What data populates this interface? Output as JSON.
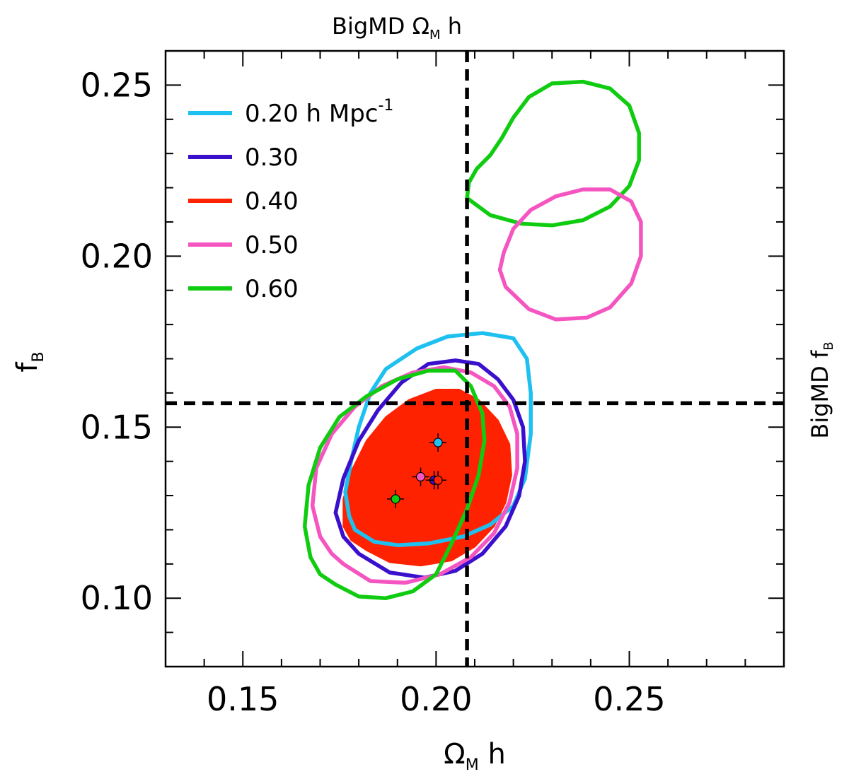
{
  "chart_data": {
    "type": "contour",
    "title": "",
    "xlabel": {
      "main": "Ω",
      "sub": "M",
      "suffix": " h"
    },
    "ylabel": {
      "main": "f",
      "sub": "B"
    },
    "top_label": {
      "prefix": "BigMD ",
      "main": "Ω",
      "sub": "M",
      "suffix": " h"
    },
    "right_label": {
      "prefix": "BigMD ",
      "main": "f",
      "sub": "B"
    },
    "xlim": [
      0.13,
      0.29
    ],
    "ylim": [
      0.08,
      0.26
    ],
    "xticks": [
      0.15,
      0.2,
      0.25
    ],
    "xtick_labels": [
      "0.15",
      "0.20",
      "0.25"
    ],
    "yticks": [
      0.1,
      0.15,
      0.2,
      0.25
    ],
    "ytick_labels": [
      "0.10",
      "0.15",
      "0.20",
      "0.25"
    ],
    "reference_lines": {
      "x": 0.208,
      "y": 0.157
    },
    "legend_position": "top-left",
    "series": [
      {
        "name": "0.20 h Mpc",
        "unit_sup": "-1",
        "color": "#1EC0F0",
        "filled": false,
        "best_fit": {
          "x": 0.2005,
          "y": 0.1455
        },
        "contour": [
          [
            0.179,
            0.12
          ],
          [
            0.184,
            0.1165
          ],
          [
            0.19,
            0.1155
          ],
          [
            0.198,
            0.116
          ],
          [
            0.207,
            0.118
          ],
          [
            0.214,
            0.1215
          ],
          [
            0.22,
            0.127
          ],
          [
            0.223,
            0.135
          ],
          [
            0.2245,
            0.148
          ],
          [
            0.2245,
            0.16
          ],
          [
            0.2235,
            0.17
          ],
          [
            0.22,
            0.176
          ],
          [
            0.212,
            0.1775
          ],
          [
            0.203,
            0.1765
          ],
          [
            0.195,
            0.173
          ],
          [
            0.187,
            0.167
          ],
          [
            0.183,
            0.16
          ],
          [
            0.18,
            0.15
          ],
          [
            0.178,
            0.14
          ],
          [
            0.1765,
            0.131
          ],
          [
            0.1775,
            0.124
          ],
          [
            0.179,
            0.12
          ]
        ]
      },
      {
        "name": "0.30",
        "color": "#3A10CC",
        "filled": false,
        "best_fit": {
          "x": 0.1995,
          "y": 0.1345
        },
        "contour": [
          [
            0.18,
            0.113
          ],
          [
            0.188,
            0.1075
          ],
          [
            0.197,
            0.106
          ],
          [
            0.205,
            0.108
          ],
          [
            0.212,
            0.113
          ],
          [
            0.218,
            0.121
          ],
          [
            0.2215,
            0.13
          ],
          [
            0.223,
            0.14
          ],
          [
            0.2225,
            0.15
          ],
          [
            0.22,
            0.158
          ],
          [
            0.216,
            0.164
          ],
          [
            0.211,
            0.1685
          ],
          [
            0.205,
            0.1695
          ],
          [
            0.198,
            0.1685
          ],
          [
            0.191,
            0.163
          ],
          [
            0.185,
            0.155
          ],
          [
            0.18,
            0.146
          ],
          [
            0.176,
            0.135
          ],
          [
            0.174,
            0.125
          ],
          [
            0.176,
            0.118
          ],
          [
            0.18,
            0.113
          ]
        ]
      },
      {
        "name": "0.40",
        "color": "#FF2200",
        "filled": true,
        "best_fit": {
          "x": 0.2005,
          "y": 0.1345
        },
        "contour": [
          [
            0.182,
            0.114
          ],
          [
            0.188,
            0.1105
          ],
          [
            0.196,
            0.1095
          ],
          [
            0.204,
            0.111
          ],
          [
            0.21,
            0.115
          ],
          [
            0.215,
            0.121
          ],
          [
            0.218,
            0.128
          ],
          [
            0.2195,
            0.136
          ],
          [
            0.219,
            0.145
          ],
          [
            0.216,
            0.152
          ],
          [
            0.211,
            0.158
          ],
          [
            0.206,
            0.161
          ],
          [
            0.2,
            0.161
          ],
          [
            0.193,
            0.158
          ],
          [
            0.187,
            0.153
          ],
          [
            0.182,
            0.146
          ],
          [
            0.178,
            0.137
          ],
          [
            0.176,
            0.129
          ],
          [
            0.176,
            0.121
          ],
          [
            0.178,
            0.117
          ],
          [
            0.182,
            0.114
          ]
        ]
      },
      {
        "name": "0.50",
        "color": "#F555C0",
        "filled": false,
        "best_fit": {
          "x": 0.196,
          "y": 0.1355
        },
        "contour": [
          [
            0.176,
            0.11
          ],
          [
            0.183,
            0.105
          ],
          [
            0.192,
            0.1045
          ],
          [
            0.201,
            0.107
          ],
          [
            0.209,
            0.112
          ],
          [
            0.215,
            0.119
          ],
          [
            0.219,
            0.128
          ],
          [
            0.221,
            0.138
          ],
          [
            0.221,
            0.148
          ],
          [
            0.219,
            0.156
          ],
          [
            0.215,
            0.162
          ],
          [
            0.209,
            0.166
          ],
          [
            0.202,
            0.1675
          ],
          [
            0.194,
            0.166
          ],
          [
            0.186,
            0.162
          ],
          [
            0.179,
            0.156
          ],
          [
            0.173,
            0.148
          ],
          [
            0.169,
            0.138
          ],
          [
            0.168,
            0.127
          ],
          [
            0.17,
            0.118
          ],
          [
            0.173,
            0.113
          ],
          [
            0.176,
            0.11
          ]
        ]
      },
      {
        "name": "0.60",
        "color": "#10CC10",
        "filled": false,
        "best_fit": {
          "x": 0.1895,
          "y": 0.129
        },
        "contour": [
          [
            0.174,
            0.104
          ],
          [
            0.18,
            0.1005
          ],
          [
            0.187,
            0.1
          ],
          [
            0.194,
            0.102
          ],
          [
            0.2,
            0.107
          ],
          [
            0.204,
            0.116
          ],
          [
            0.208,
            0.126
          ],
          [
            0.211,
            0.136
          ],
          [
            0.2125,
            0.146
          ],
          [
            0.212,
            0.154
          ],
          [
            0.209,
            0.162
          ],
          [
            0.205,
            0.1665
          ],
          [
            0.198,
            0.1665
          ],
          [
            0.19,
            0.164
          ],
          [
            0.182,
            0.159
          ],
          [
            0.175,
            0.153
          ],
          [
            0.17,
            0.144
          ],
          [
            0.167,
            0.133
          ],
          [
            0.166,
            0.121
          ],
          [
            0.1675,
            0.112
          ],
          [
            0.17,
            0.107
          ],
          [
            0.174,
            0.104
          ]
        ],
        "contour_2": [
          [
            0.208,
            0.217
          ],
          [
            0.214,
            0.212
          ],
          [
            0.222,
            0.2095
          ],
          [
            0.23,
            0.209
          ],
          [
            0.238,
            0.2105
          ],
          [
            0.245,
            0.2145
          ],
          [
            0.25,
            0.2205
          ],
          [
            0.2525,
            0.228
          ],
          [
            0.2525,
            0.236
          ],
          [
            0.25,
            0.244
          ],
          [
            0.245,
            0.249
          ],
          [
            0.238,
            0.251
          ],
          [
            0.23,
            0.2505
          ],
          [
            0.224,
            0.2465
          ],
          [
            0.22,
            0.2405
          ],
          [
            0.217,
            0.2345
          ],
          [
            0.214,
            0.2295
          ],
          [
            0.2105,
            0.2255
          ],
          [
            0.2085,
            0.2215
          ],
          [
            0.208,
            0.217
          ]
        ]
      },
      {
        "name": "0.50 (second region)",
        "legend": false,
        "color": "#F555C0",
        "filled": false,
        "contour": [
          [
            0.218,
            0.191
          ],
          [
            0.224,
            0.1845
          ],
          [
            0.231,
            0.1815
          ],
          [
            0.239,
            0.182
          ],
          [
            0.245,
            0.185
          ],
          [
            0.2505,
            0.192
          ],
          [
            0.253,
            0.2
          ],
          [
            0.253,
            0.21
          ],
          [
            0.2505,
            0.216
          ],
          [
            0.245,
            0.2195
          ],
          [
            0.238,
            0.2195
          ],
          [
            0.231,
            0.2175
          ],
          [
            0.2245,
            0.2135
          ],
          [
            0.22,
            0.208
          ],
          [
            0.2175,
            0.201
          ],
          [
            0.2165,
            0.196
          ],
          [
            0.218,
            0.191
          ]
        ]
      }
    ]
  }
}
